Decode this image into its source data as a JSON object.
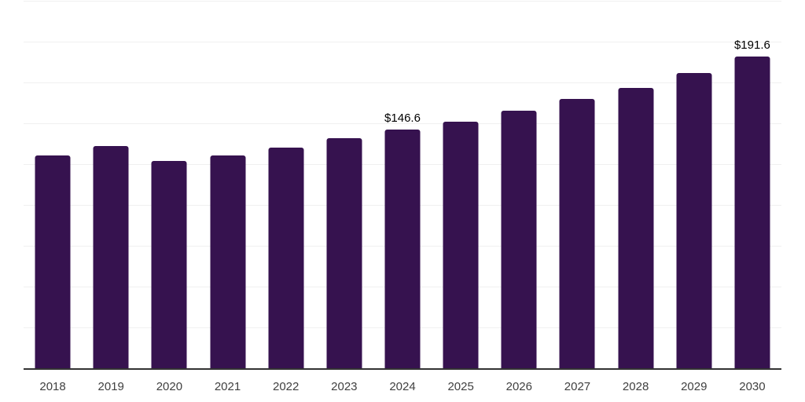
{
  "chart_data": {
    "type": "bar",
    "title": "",
    "xlabel": "",
    "ylabel": "",
    "categories": [
      "2018",
      "2019",
      "2020",
      "2021",
      "2022",
      "2023",
      "2024",
      "2025",
      "2026",
      "2027",
      "2028",
      "2029",
      "2030"
    ],
    "values": [
      131.0,
      136.8,
      127.6,
      130.6,
      135.4,
      141.2,
      146.6,
      151.7,
      158.0,
      165.2,
      172.0,
      181.1,
      191.6
    ],
    "data_labels": [
      "",
      "",
      "",
      "",
      "",
      "",
      "$146.6",
      "",
      "",
      "",
      "",
      "",
      "$191.6"
    ],
    "ylim": [
      0,
      225
    ],
    "grid_interval": 25,
    "grid": "horizontal-only",
    "legend_position": "none",
    "y_tick_labels_visible": false,
    "colors": {
      "bar": "#36124f",
      "axis_line": "#333333",
      "gridline": "#f0f0f0",
      "tick_label": "#404040",
      "data_label": "#000000",
      "background": "#ffffff"
    }
  }
}
